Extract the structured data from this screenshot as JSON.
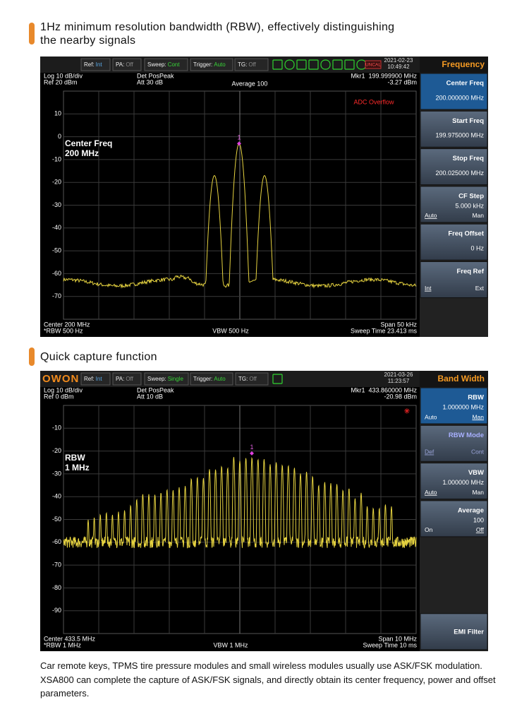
{
  "sections": [
    {
      "heading_lines": [
        "1Hz minimum resolution bandwidth (RBW), effectively distinguishing",
        "the nearby signals"
      ],
      "screen": {
        "toolbar": [
          {
            "label": "Ref:",
            "value": "Int"
          },
          {
            "label": "PA:",
            "value": "Off"
          },
          {
            "label": "Sweep:",
            "value": "Cont"
          },
          {
            "label": "Trigger:",
            "value": "Auto"
          },
          {
            "label": "TG:",
            "value": "Off"
          }
        ],
        "status_flag": "UNCAL",
        "date": "2021-02-23",
        "time": "10:49:42",
        "menu_title": "Frequency",
        "info": {
          "scale": "Log 10 dB/div",
          "ref": "Ref 20 dBm",
          "detector": "Det PosPeak",
          "attenuation": "Att 30 dB",
          "average": "Average 100",
          "marker": "Mkr1  199.999900 MHz",
          "marker_level": "-3.27 dBm"
        },
        "warning": "ADC Overflow",
        "label_lines": [
          "Center Freq",
          "200 MHz"
        ],
        "marker_id": "1",
        "y_labels": [
          "10",
          "0",
          "-10",
          "-20",
          "-30",
          "-40",
          "-50",
          "-60",
          "-70"
        ],
        "bottom": {
          "center": "Center 200 MHz",
          "rbw": "*RBW 500 Hz",
          "vbw": "VBW 500 Hz",
          "span": "Span 50 kHz",
          "sweep_time": "Sweep Time 23.413 ms"
        },
        "menu": [
          {
            "title": "Center Freq",
            "value": "200.000000 MHz"
          },
          {
            "title": "Start Freq",
            "value": "199.975000 MHz"
          },
          {
            "title": "Stop Freq",
            "value": "200.025000 MHz"
          },
          {
            "title": "CF Step",
            "value": "5.000 kHz",
            "left": "Auto",
            "right": "Man"
          },
          {
            "title": "Freq Offset",
            "value": "0 Hz"
          },
          {
            "title": "Freq Ref",
            "left": "Int",
            "right": "Ext"
          }
        ]
      }
    },
    {
      "heading_lines": [
        "Quick capture function"
      ],
      "screen": {
        "logo": "OWON",
        "toolbar": [
          {
            "label": "Ref:",
            "value": "Int"
          },
          {
            "label": "PA:",
            "value": "Off"
          },
          {
            "label": "Sweep:",
            "value": "Single"
          },
          {
            "label": "Trigger:",
            "value": "Auto"
          },
          {
            "label": "TG:",
            "value": "Off"
          }
        ],
        "date": "2021-03-26",
        "time": "11:23:57",
        "menu_title": "Band Width",
        "info": {
          "scale": "Log 10 dB/div",
          "ref": "Ref 0 dBm",
          "detector": "Det PosPeak",
          "attenuation": "Att 10 dB",
          "marker": "Mkr1  433.860000 MHz",
          "marker_level": "-20.98 dBm"
        },
        "label_lines": [
          "RBW",
          "1 MHz"
        ],
        "marker_id": "1",
        "y_labels": [
          "-10",
          "-20",
          "-30",
          "-40",
          "-50",
          "-60",
          "-70",
          "-80",
          "-90"
        ],
        "bottom": {
          "center": "Center 433.5 MHz",
          "rbw": "*RBW 1 MHz",
          "vbw": "VBW 1 MHz",
          "span": "Span 10 MHz",
          "sweep_time": "Sweep Time 10 ms"
        },
        "menu": [
          {
            "title": "RBW",
            "value": "1.000000 MHz",
            "left": "Auto",
            "right": "Man"
          },
          {
            "title": "RBW Mode",
            "left": "Def",
            "right": "Cont"
          },
          {
            "title": "VBW",
            "value": "1.000000 MHz",
            "left": "Auto",
            "right": "Man"
          },
          {
            "title": "Average",
            "value": "100",
            "left": "On",
            "right": "Off"
          },
          {
            "title": "EMI Filter"
          }
        ]
      }
    }
  ],
  "paragraph": "Car remote keys, TPMS tire pressure modules and small wireless modules usually use ASK/FSK modulation. XSA800 can complete the capture of ASK/FSK signals, and directly obtain its center frequency, power and offset parameters."
}
